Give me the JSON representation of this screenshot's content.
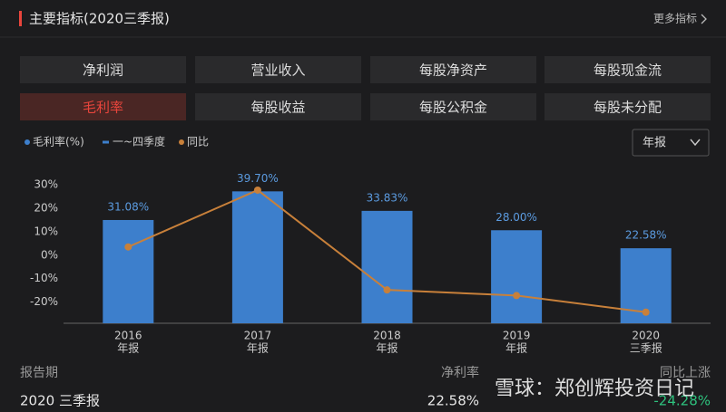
{
  "header": {
    "title": "主要指标(2020三季报)",
    "more": "更多指标"
  },
  "tabs": [
    {
      "label": "净利润",
      "active": false
    },
    {
      "label": "营业收入",
      "active": false
    },
    {
      "label": "每股净资产",
      "active": false
    },
    {
      "label": "每股现金流",
      "active": false
    },
    {
      "label": "毛利率",
      "active": true
    },
    {
      "label": "每股收益",
      "active": false
    },
    {
      "label": "每股公积金",
      "active": false
    },
    {
      "label": "每股未分配",
      "active": false
    }
  ],
  "period_toggle": "一~四季度",
  "dropdown": "年报",
  "chart_data": {
    "type": "bar",
    "categories": [
      [
        "2016",
        "年报"
      ],
      [
        "2017",
        "年报"
      ],
      [
        "2018",
        "年报"
      ],
      [
        "2019",
        "年报"
      ],
      [
        "2020",
        "三季报"
      ]
    ],
    "series": [
      {
        "name": "毛利率(%)",
        "type": "bar",
        "axis": "y2",
        "color": "#3d7fcc",
        "values": [
          31.08,
          39.7,
          33.83,
          28.0,
          22.58
        ],
        "value_labels": [
          "31.08%",
          "39.70%",
          "33.83%",
          "28.00%",
          "22.58%"
        ]
      },
      {
        "name": "同比",
        "type": "line",
        "color": "#c8803a",
        "values": [
          3.5,
          27.7,
          -14.8,
          -17.2,
          -24.28
        ]
      }
    ],
    "ylim": [
      -29,
      30
    ],
    "yticks": [
      {
        "value": 30,
        "label": "30%"
      },
      {
        "value": 20,
        "label": "20%"
      },
      {
        "value": 10,
        "label": "10%"
      },
      {
        "value": 0,
        "label": "0%"
      },
      {
        "value": -10,
        "label": "-10%"
      },
      {
        "value": -20,
        "label": "-20%"
      }
    ],
    "y2lim": [
      0,
      41.7
    ],
    "grid": false
  },
  "table": {
    "header": [
      "报告期",
      "净利率",
      "同比上涨"
    ],
    "rows": [
      [
        "2020 三季报",
        "22.58%",
        "-24.28%"
      ]
    ]
  },
  "watermark": "雪球：郑创辉投资日记"
}
